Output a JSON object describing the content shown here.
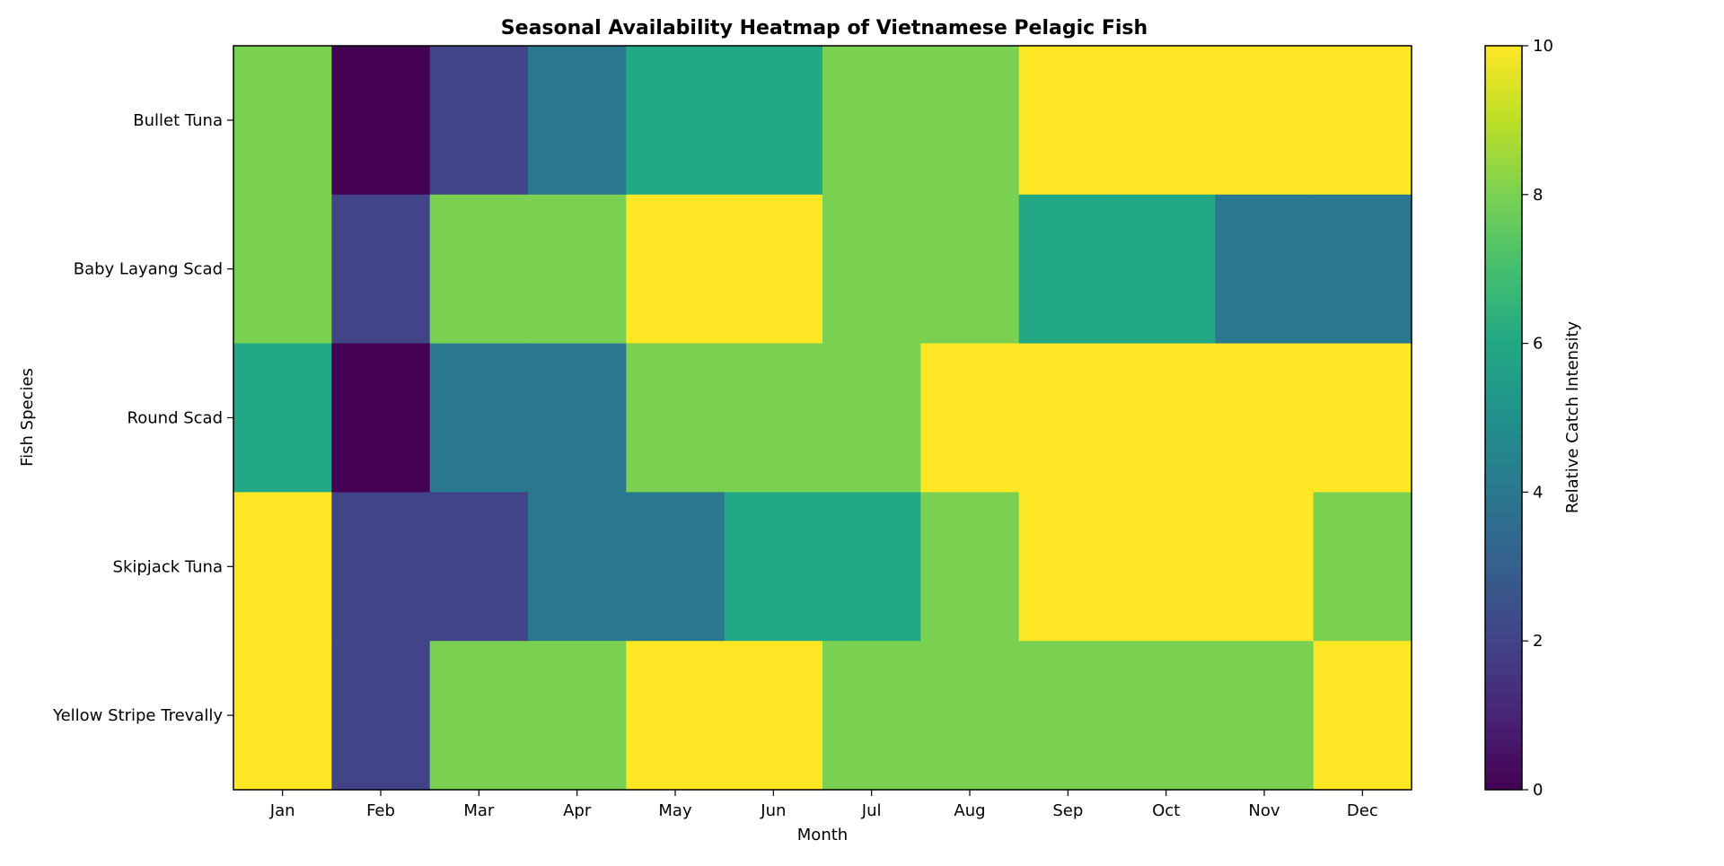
{
  "chart_data": {
    "type": "heatmap",
    "title": "Seasonal Availability Heatmap of Vietnamese Pelagic Fish",
    "xlabel": "Month",
    "ylabel": "Fish Species",
    "x_categories": [
      "Jan",
      "Feb",
      "Mar",
      "Apr",
      "May",
      "Jun",
      "Jul",
      "Aug",
      "Sep",
      "Oct",
      "Nov",
      "Dec"
    ],
    "y_categories": [
      "Bullet Tuna",
      "Baby Layang Scad",
      "Round Scad",
      "Skipjack Tuna",
      "Yellow Stripe Trevally"
    ],
    "values": [
      [
        8,
        0,
        2,
        4,
        6,
        6,
        8,
        8,
        10,
        10,
        10,
        10
      ],
      [
        8,
        2,
        8,
        8,
        10,
        10,
        8,
        8,
        6,
        6,
        4,
        4
      ],
      [
        6,
        0,
        4,
        4,
        8,
        8,
        8,
        10,
        10,
        10,
        10,
        10
      ],
      [
        10,
        2,
        2,
        4,
        4,
        6,
        6,
        8,
        10,
        10,
        10,
        8
      ],
      [
        10,
        2,
        8,
        8,
        10,
        10,
        8,
        8,
        8,
        8,
        8,
        10
      ]
    ],
    "colorbar": {
      "label": "Relative Catch Intensity",
      "range": [
        0,
        10
      ],
      "ticks": [
        0,
        2,
        4,
        6,
        8,
        10
      ],
      "colormap": "viridis"
    },
    "grid": false
  },
  "colors": {
    "v0": "#440154",
    "v2": "#3b528b",
    "v4": "#2c7b8d",
    "v6": "#22a884",
    "v8": "#7ad151",
    "v10": "#fde725",
    "axis": "#000000",
    "background": "#ffffff"
  }
}
